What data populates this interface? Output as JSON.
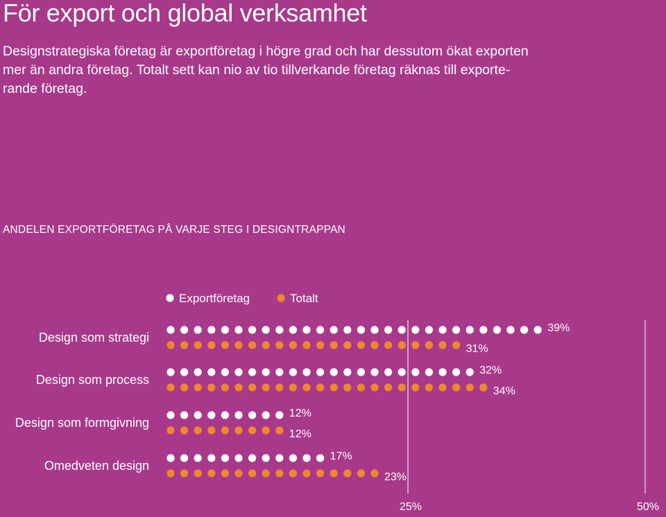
{
  "title": "För export och global verksamhet",
  "intro_lines": [
    "Designstrategiska företag är exportföretag i högre grad och har dessutom ökat exporten",
    "mer än andra företag. Totalt sett kan nio av tio tillverkande företag räknas till exporte-",
    "rande företag."
  ],
  "colors": {
    "background": "#a8398a",
    "export_dot": "#ffffff",
    "total_dot": "#f0882a",
    "text": "#ffffff"
  },
  "chart_data": {
    "type": "bar",
    "title": "ANDELEN EXPORTFÖRETAG PÅ VARJE STEG I DESIGNTRAPPAN",
    "categories": [
      "Design som strategi",
      "Design som process",
      "Design som formgivning",
      "Omedveten design"
    ],
    "series": [
      {
        "name": "Exportföretag",
        "values": [
          39,
          32,
          12,
          17
        ],
        "labels": [
          "39%",
          "32%",
          "12%",
          "17%"
        ],
        "color": "#ffffff"
      },
      {
        "name": "Totalt",
        "values": [
          31,
          34,
          12,
          23
        ],
        "labels": [
          "31%",
          "34%",
          "12%",
          "23%"
        ],
        "color": "#f0882a"
      }
    ],
    "reference_lines": [
      {
        "value": 25,
        "label": "25%"
      },
      {
        "value": 50,
        "label": "50%"
      }
    ],
    "percent_per_dot": 1.4,
    "legend_position": "top"
  }
}
